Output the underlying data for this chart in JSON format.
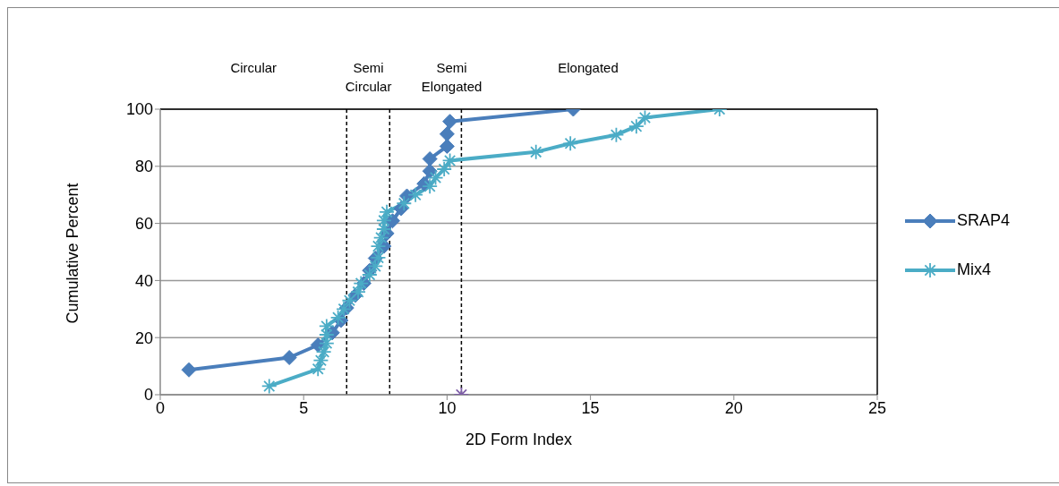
{
  "chart_data": {
    "type": "line",
    "xlabel": "2D Form Index",
    "ylabel": "Cumulative Percent",
    "xlim": [
      0,
      25
    ],
    "xticks": [
      0,
      5,
      10,
      15,
      20,
      25
    ],
    "ylim": [
      0,
      100
    ],
    "yticks": [
      0,
      20,
      40,
      60,
      80,
      100
    ],
    "grid": "y",
    "legend": "right",
    "line_style": "solid",
    "annotations": [
      "Circular",
      "Semi\nCircular",
      "Semi\nElongated",
      "Elongated"
    ],
    "ref_lines": [
      {
        "axis": "x",
        "value": 6.5,
        "color": "#000000",
        "line_style": "dashed"
      },
      {
        "axis": "x",
        "value": 8,
        "color": "#000000",
        "line_style": "dashed"
      },
      {
        "axis": "x",
        "value": 10.5,
        "color": "#000000",
        "line_style": "dashed"
      }
    ],
    "series": [
      {
        "name": "SRAP4",
        "color": "#4a7ebb",
        "marker": "diamond",
        "x": [
          1.0,
          4.5,
          5.5,
          6.0,
          6.3,
          6.5,
          6.8,
          7.1,
          7.3,
          7.5,
          7.8,
          7.9,
          8.1,
          8.4,
          8.6,
          9.2,
          9.4,
          9.4,
          10.0,
          10.0,
          10.1,
          14.4
        ],
        "values": [
          8.7,
          13,
          17.4,
          21.7,
          26,
          30.4,
          34.8,
          39,
          43.5,
          47.8,
          52,
          56.5,
          60.9,
          65.2,
          69.6,
          73.9,
          78.3,
          82.6,
          87,
          91.3,
          95.7,
          100
        ]
      },
      {
        "name": "Mix4",
        "color": "#4bacc6",
        "marker": "cross",
        "x": [
          3.8,
          5.5,
          5.6,
          5.7,
          5.8,
          5.8,
          5.8,
          6.2,
          6.4,
          6.6,
          6.9,
          7.0,
          7.3,
          7.5,
          7.6,
          7.6,
          7.7,
          7.8,
          7.8,
          7.9,
          8.5,
          8.9,
          9.4,
          9.6,
          9.9,
          10.1,
          13.1,
          14.3,
          15.9,
          16.6,
          16.9,
          19.5
        ],
        "values": [
          3,
          9,
          12,
          15,
          18,
          21,
          24,
          27,
          30,
          33,
          36,
          39,
          42,
          45,
          48,
          52,
          55,
          58,
          61,
          64,
          67,
          70,
          73,
          76,
          79,
          82,
          85,
          88,
          91,
          94,
          97,
          100
        ]
      },
      {
        "type": "scatter",
        "color": "#7f5fa8",
        "marker": "cross",
        "x": [
          10.5
        ],
        "values": [
          0
        ]
      }
    ]
  }
}
